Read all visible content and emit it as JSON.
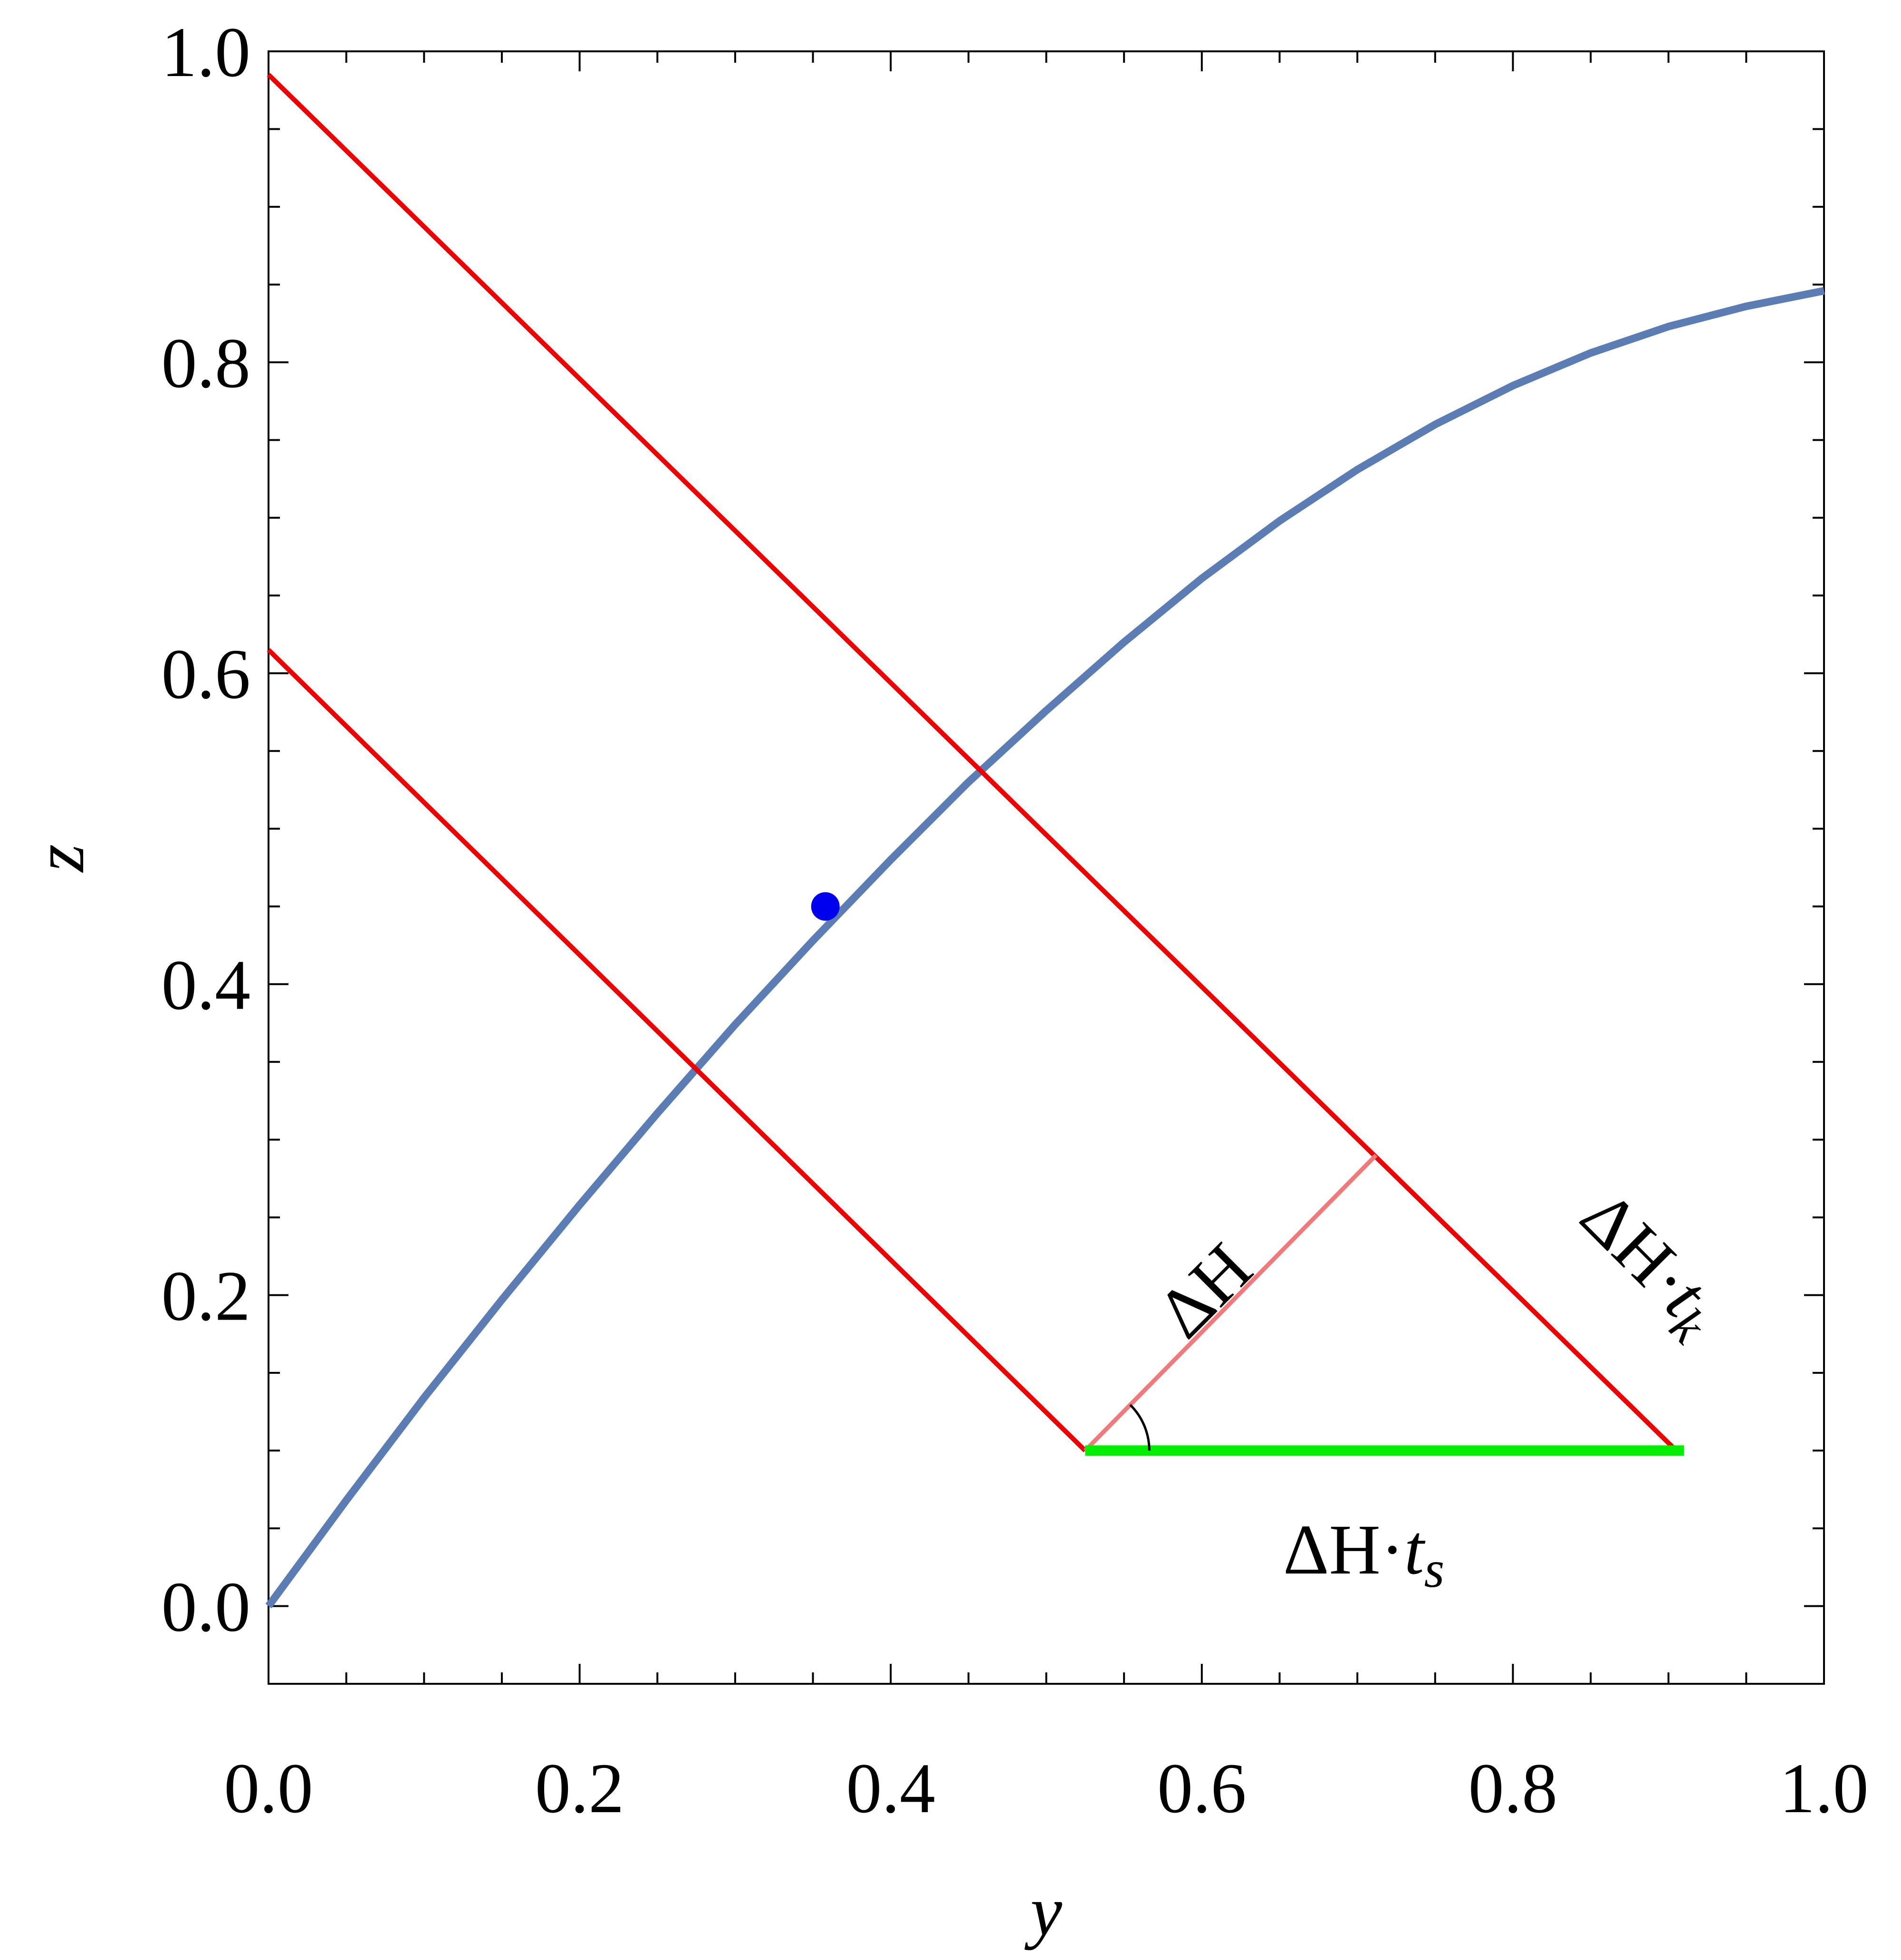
{
  "chart_data": {
    "type": "line",
    "xlabel": "y",
    "ylabel": "z",
    "xlim": [
      0.0,
      1.0
    ],
    "ylim": [
      -0.05,
      1.0
    ],
    "x_ticks": [
      "0.0",
      "0.2",
      "0.4",
      "0.6",
      "0.8",
      "1.0"
    ],
    "y_ticks": [
      "0.0",
      "0.2",
      "0.4",
      "0.6",
      "0.8",
      "1.0"
    ],
    "grid": false,
    "colors": {
      "curve": "#5b7db4",
      "red_lines": "#ee0000",
      "projection": "#f07a7a",
      "base": "#00ee00",
      "point": "#0000ee"
    },
    "series": [
      {
        "kind": "curve",
        "x": [
          0.0,
          0.05,
          0.1,
          0.15,
          0.2,
          0.25,
          0.3,
          0.35,
          0.4,
          0.45,
          0.5,
          0.55,
          0.6,
          0.65,
          0.7,
          0.75,
          0.8,
          0.85,
          0.9,
          0.95,
          1.0
        ],
        "y": [
          0.0,
          0.068,
          0.134,
          0.197,
          0.258,
          0.317,
          0.374,
          0.428,
          0.48,
          0.53,
          0.576,
          0.62,
          0.661,
          0.698,
          0.731,
          0.76,
          0.785,
          0.806,
          0.823,
          0.836,
          0.846
        ]
      },
      {
        "kind": "line",
        "x": [
          0.0,
          0.905
        ],
        "y": [
          0.985,
          0.1
        ]
      },
      {
        "kind": "line",
        "x": [
          0.0,
          0.525
        ],
        "y": [
          0.615,
          0.1
        ]
      },
      {
        "kind": "projection",
        "x": [
          0.525,
          0.712
        ],
        "y": [
          0.1,
          0.29
        ]
      },
      {
        "kind": "base",
        "x": [
          0.525,
          0.91
        ],
        "y": [
          0.1,
          0.1
        ]
      }
    ],
    "point": {
      "x": 0.358,
      "y": 0.45
    },
    "annotations": {
      "dh": {
        "text": "ΔH"
      },
      "dh_tk": {
        "base": "ΔH·",
        "var": "t",
        "sub": "k"
      },
      "dh_ts": {
        "base": "ΔH·",
        "var": "t",
        "sub": "s"
      }
    }
  }
}
